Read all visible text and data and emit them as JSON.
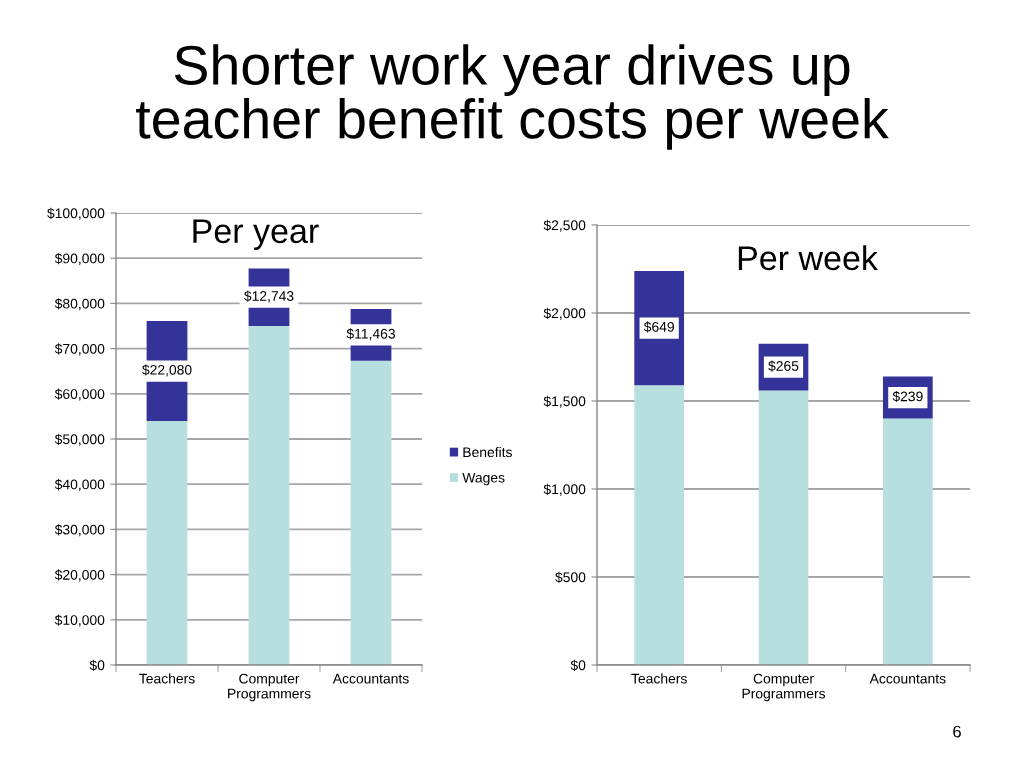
{
  "chart_data": [
    {
      "type": "bar",
      "title": "Shorter work year drives up teacher benefit costs per week",
      "subtitle": "Per year",
      "categories": [
        "Teachers",
        "Computer Programmers",
        "Accountants"
      ],
      "stacked": true,
      "series": [
        {
          "name": "Wages",
          "color": "#b8dfe0",
          "values": [
            54000,
            75000,
            67300
          ]
        },
        {
          "name": "Benefits",
          "color": "#333399",
          "values": [
            22080,
            12743,
            11463
          ],
          "value_labels": [
            "$22,080",
            "$12,743",
            "$11,463"
          ]
        }
      ],
      "ylim": [
        0,
        100000
      ],
      "yticks": [
        {
          "value": 0,
          "label": "$0"
        },
        {
          "value": 10000,
          "label": "$10,000"
        },
        {
          "value": 20000,
          "label": "$20,000"
        },
        {
          "value": 30000,
          "label": "$30,000"
        },
        {
          "value": 40000,
          "label": "$40,000"
        },
        {
          "value": 50000,
          "label": "$50,000"
        },
        {
          "value": 60000,
          "label": "$60,000"
        },
        {
          "value": 70000,
          "label": "$70,000"
        },
        {
          "value": 80000,
          "label": "$80,000"
        },
        {
          "value": 90000,
          "label": "$90,000"
        },
        {
          "value": 100000,
          "label": "$100,000"
        }
      ],
      "grid": "y",
      "legend": "right"
    },
    {
      "type": "bar",
      "subtitle": "Per week",
      "categories": [
        "Teachers",
        "Computer Programmers",
        "Accountants"
      ],
      "stacked": true,
      "series": [
        {
          "color": "#b8dfe0",
          "values": [
            1590,
            1560,
            1400
          ]
        },
        {
          "color": "#333399",
          "values": [
            649,
            265,
            239
          ],
          "value_labels": [
            "$649",
            "$265",
            "$239"
          ]
        }
      ],
      "ylim": [
        0,
        2500
      ],
      "yticks": [
        {
          "value": 0,
          "label": "$0"
        },
        {
          "value": 500,
          "label": "$500"
        },
        {
          "value": 1000,
          "label": "$1,000"
        },
        {
          "value": 1500,
          "label": "$1,500"
        },
        {
          "value": 2000,
          "label": "$2,000"
        },
        {
          "value": 2500,
          "label": "$2,500"
        }
      ],
      "grid": "y",
      "annotations": [
        "6"
      ]
    }
  ]
}
